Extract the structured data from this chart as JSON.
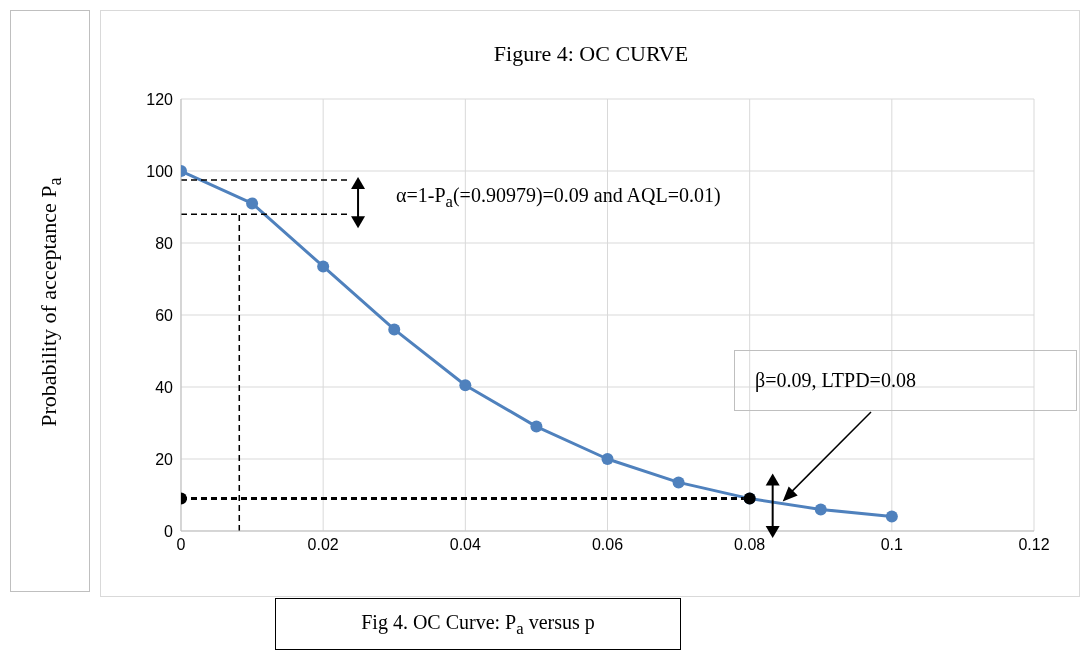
{
  "chart_data": {
    "type": "line",
    "title": "Figure 4: OC CURVE",
    "ylabel": "Probability of acceptance P$_{a}$",
    "xlim": [
      0,
      0.12
    ],
    "xticks": [
      0,
      0.02,
      0.04,
      0.06,
      0.08,
      0.1,
      0.12
    ],
    "ylim": [
      0,
      120
    ],
    "yticks": [
      0,
      20,
      40,
      60,
      80,
      100,
      120
    ],
    "grid": true,
    "series": [
      {
        "color": "#4f81bd",
        "marker": "circle",
        "line_style": "solid",
        "x": [
          0,
          0.01,
          0.02,
          0.03,
          0.04,
          0.05,
          0.06,
          0.07,
          0.08,
          0.09,
          0.1
        ],
        "values": [
          100,
          91,
          73.5,
          56,
          40.5,
          29,
          20,
          13.5,
          9,
          6,
          4
        ]
      },
      {
        "color": "#000000",
        "marker": "circle",
        "line_style": "dashed",
        "x": [
          0,
          0.08
        ],
        "values": [
          9,
          9
        ]
      },
      {
        "color": "#000000",
        "marker": "none",
        "line_style": "dashed",
        "x": [
          0,
          0.0235
        ],
        "values": [
          97.5,
          97.5
        ]
      },
      {
        "color": "#000000",
        "marker": "none",
        "line_style": "dashed",
        "x": [
          0,
          0.0235
        ],
        "values": [
          88,
          88
        ]
      },
      {
        "color": "#000000",
        "marker": "none",
        "line_style": "dashed",
        "x": [
          0.0082,
          0.0082
        ],
        "values": [
          0,
          88
        ]
      }
    ],
    "annotations": [
      "α=1-P$_{a}$(=0.90979)=0.09 and AQL=0.01)",
      "β=0.09, LTPD=0.08",
      "Fig 4. OC Curve: P$_{a}$ versus p"
    ]
  }
}
